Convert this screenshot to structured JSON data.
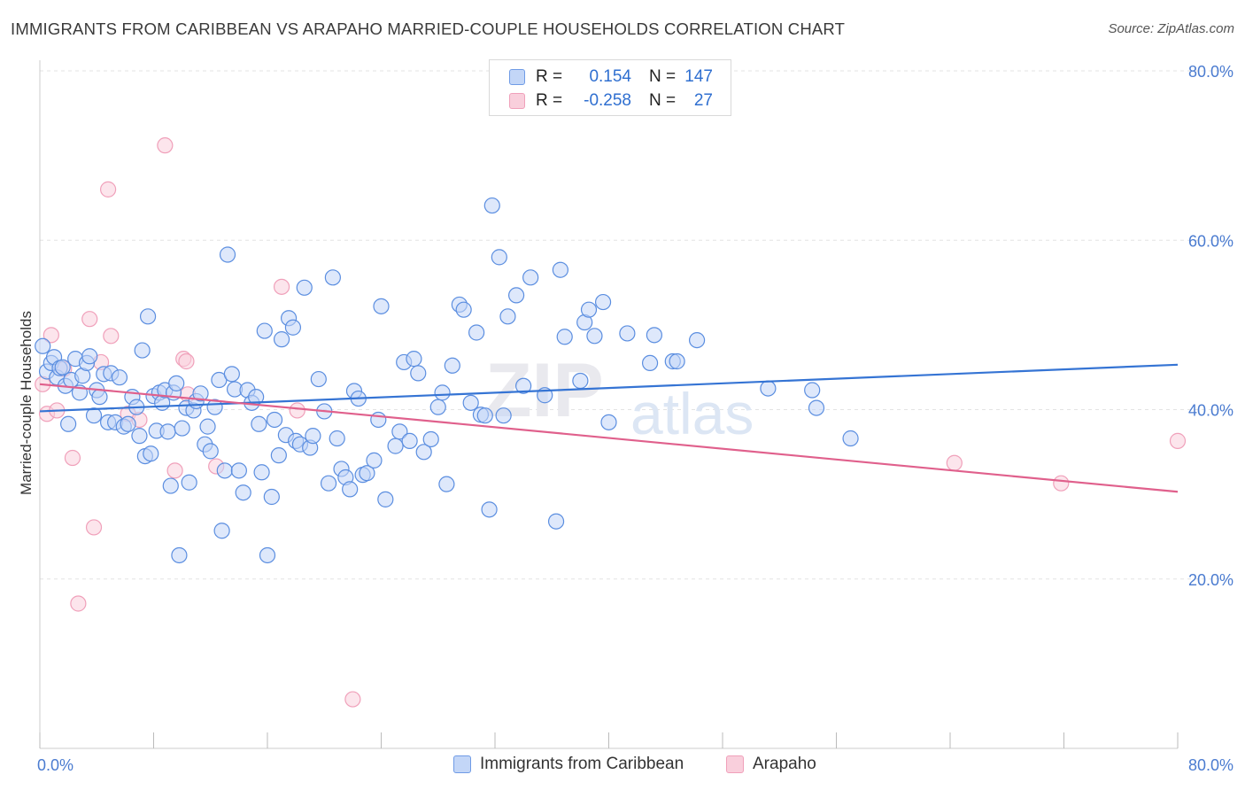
{
  "header": {
    "title": "IMMIGRANTS FROM CARIBBEAN VS ARAPAHO MARRIED-COUPLE HOUSEHOLDS CORRELATION CHART",
    "source": "Source: ZipAtlas.com"
  },
  "watermark": {
    "zip": "ZIP",
    "atlas": "atlas"
  },
  "legend": {
    "rows": [
      {
        "r_label": "R =",
        "r_value": "0.154",
        "n_label": "N =",
        "n_value": "147",
        "color": "#6f9be6",
        "fill": "#c3d6f7"
      },
      {
        "r_label": "R =",
        "r_value": "-0.258",
        "n_label": "N =",
        "n_value": "27",
        "color": "#f0a0ba",
        "fill": "#f9cfdc"
      }
    ]
  },
  "bottom_legend": {
    "items": [
      {
        "label": "Immigrants from Caribbean",
        "color": "#6f9be6",
        "fill": "#c3d6f7"
      },
      {
        "label": "Arapaho",
        "color": "#f0a0ba",
        "fill": "#f9cfdc"
      }
    ]
  },
  "chart_data": {
    "type": "scatter",
    "ylabel": "Married-couple Households",
    "xlim": [
      0,
      80
    ],
    "ylim": [
      0,
      80
    ],
    "x_tick_labels": [
      {
        "value": 0,
        "label": "0.0%"
      },
      {
        "value": 80,
        "label": "80.0%"
      }
    ],
    "y_tick_labels": [
      {
        "value": 20,
        "label": "20.0%"
      },
      {
        "value": 40,
        "label": "40.0%"
      },
      {
        "value": 60,
        "label": "60.0%"
      },
      {
        "value": 80,
        "label": "80.0%"
      }
    ],
    "grid": "horizontal-dashed",
    "series": [
      {
        "name": "Immigrants from Caribbean",
        "color": "#5b8ee0",
        "fill": "#c3d6f7",
        "trend": {
          "x": [
            0,
            80
          ],
          "y": [
            39.8,
            45.3
          ],
          "color": "#3574d4"
        },
        "points": [
          [
            0.2,
            47.5
          ],
          [
            0.5,
            44.5
          ],
          [
            0.8,
            45.5
          ],
          [
            1.0,
            46.2
          ],
          [
            1.2,
            43.8
          ],
          [
            1.4,
            44.9
          ],
          [
            1.6,
            45.0
          ],
          [
            1.8,
            42.8
          ],
          [
            2.0,
            38.3
          ],
          [
            2.2,
            43.5
          ],
          [
            2.5,
            46.0
          ],
          [
            2.8,
            42.0
          ],
          [
            3.0,
            44.0
          ],
          [
            3.3,
            45.5
          ],
          [
            3.5,
            46.3
          ],
          [
            3.8,
            39.3
          ],
          [
            4.0,
            42.3
          ],
          [
            4.2,
            41.5
          ],
          [
            4.5,
            44.2
          ],
          [
            4.8,
            38.5
          ],
          [
            5.0,
            44.3
          ],
          [
            5.3,
            38.5
          ],
          [
            5.6,
            43.8
          ],
          [
            5.9,
            38.0
          ],
          [
            6.2,
            38.3
          ],
          [
            6.5,
            41.5
          ],
          [
            6.8,
            40.3
          ],
          [
            7.0,
            36.9
          ],
          [
            7.2,
            47.0
          ],
          [
            7.4,
            34.5
          ],
          [
            7.6,
            51.0
          ],
          [
            7.8,
            34.8
          ],
          [
            8.0,
            41.6
          ],
          [
            8.2,
            37.5
          ],
          [
            8.4,
            42.0
          ],
          [
            8.6,
            40.8
          ],
          [
            8.8,
            42.3
          ],
          [
            9.0,
            37.4
          ],
          [
            9.2,
            31.0
          ],
          [
            9.4,
            42.0
          ],
          [
            9.6,
            43.1
          ],
          [
            9.8,
            22.8
          ],
          [
            10.0,
            37.8
          ],
          [
            10.3,
            40.2
          ],
          [
            10.5,
            31.4
          ],
          [
            10.8,
            39.9
          ],
          [
            11.0,
            41.0
          ],
          [
            11.3,
            41.9
          ],
          [
            11.6,
            35.9
          ],
          [
            11.8,
            38.0
          ],
          [
            12.0,
            35.1
          ],
          [
            12.3,
            40.3
          ],
          [
            12.6,
            43.5
          ],
          [
            12.8,
            25.7
          ],
          [
            13.0,
            32.8
          ],
          [
            13.2,
            58.3
          ],
          [
            13.5,
            44.2
          ],
          [
            13.7,
            42.4
          ],
          [
            14.0,
            32.8
          ],
          [
            14.3,
            30.2
          ],
          [
            14.6,
            42.3
          ],
          [
            14.9,
            40.8
          ],
          [
            15.2,
            41.5
          ],
          [
            15.4,
            38.3
          ],
          [
            15.6,
            32.6
          ],
          [
            15.8,
            49.3
          ],
          [
            16.0,
            22.8
          ],
          [
            16.3,
            29.7
          ],
          [
            16.5,
            38.8
          ],
          [
            16.8,
            34.6
          ],
          [
            17.0,
            48.3
          ],
          [
            17.3,
            37.0
          ],
          [
            17.5,
            50.8
          ],
          [
            17.8,
            49.7
          ],
          [
            18.0,
            36.3
          ],
          [
            18.3,
            35.9
          ],
          [
            18.6,
            54.4
          ],
          [
            19.0,
            35.5
          ],
          [
            19.2,
            36.9
          ],
          [
            19.6,
            43.6
          ],
          [
            20.0,
            39.8
          ],
          [
            20.3,
            31.3
          ],
          [
            20.6,
            55.6
          ],
          [
            20.9,
            36.6
          ],
          [
            21.2,
            33.0
          ],
          [
            21.5,
            32.0
          ],
          [
            21.8,
            30.6
          ],
          [
            22.1,
            42.2
          ],
          [
            22.4,
            41.3
          ],
          [
            22.7,
            32.3
          ],
          [
            23.0,
            32.5
          ],
          [
            23.5,
            34.0
          ],
          [
            23.8,
            38.8
          ],
          [
            24.0,
            52.2
          ],
          [
            24.3,
            29.4
          ],
          [
            25.0,
            35.7
          ],
          [
            25.3,
            37.4
          ],
          [
            25.6,
            45.6
          ],
          [
            26.0,
            36.3
          ],
          [
            26.3,
            46.0
          ],
          [
            26.6,
            44.3
          ],
          [
            27.0,
            35.0
          ],
          [
            27.5,
            36.5
          ],
          [
            28.0,
            40.3
          ],
          [
            28.3,
            42.0
          ],
          [
            28.6,
            31.2
          ],
          [
            29.0,
            45.2
          ],
          [
            29.5,
            52.4
          ],
          [
            29.8,
            51.8
          ],
          [
            30.3,
            40.8
          ],
          [
            30.7,
            49.1
          ],
          [
            31.0,
            39.4
          ],
          [
            31.3,
            39.3
          ],
          [
            31.6,
            28.2
          ],
          [
            31.8,
            64.1
          ],
          [
            32.3,
            58.0
          ],
          [
            32.6,
            39.3
          ],
          [
            32.9,
            51.0
          ],
          [
            33.5,
            53.5
          ],
          [
            34.0,
            42.8
          ],
          [
            34.5,
            55.6
          ],
          [
            35.5,
            41.7
          ],
          [
            36.3,
            26.8
          ],
          [
            36.6,
            56.5
          ],
          [
            36.9,
            48.6
          ],
          [
            38.0,
            43.4
          ],
          [
            38.3,
            50.3
          ],
          [
            38.6,
            51.8
          ],
          [
            39.0,
            48.7
          ],
          [
            39.6,
            52.7
          ],
          [
            40.0,
            38.5
          ],
          [
            41.3,
            49.0
          ],
          [
            42.9,
            45.5
          ],
          [
            43.2,
            48.8
          ],
          [
            44.5,
            45.7
          ],
          [
            44.8,
            45.7
          ],
          [
            46.2,
            48.2
          ],
          [
            51.2,
            42.5
          ],
          [
            54.3,
            42.3
          ],
          [
            54.6,
            40.2
          ],
          [
            57.0,
            36.6
          ]
        ]
      },
      {
        "name": "Arapaho",
        "color": "#f0a0ba",
        "fill": "#f9cfdc",
        "trend": {
          "x": [
            0,
            80
          ],
          "y": [
            43.0,
            30.3
          ],
          "color": "#e0608c"
        },
        "points": [
          [
            0.2,
            43.0
          ],
          [
            0.5,
            39.5
          ],
          [
            0.8,
            48.8
          ],
          [
            1.2,
            39.9
          ],
          [
            1.7,
            44.8
          ],
          [
            2.3,
            34.3
          ],
          [
            2.7,
            17.1
          ],
          [
            3.5,
            50.7
          ],
          [
            3.8,
            26.1
          ],
          [
            4.3,
            45.6
          ],
          [
            4.8,
            66.0
          ],
          [
            5.0,
            48.7
          ],
          [
            6.2,
            39.5
          ],
          [
            7.0,
            38.8
          ],
          [
            8.8,
            71.2
          ],
          [
            9.5,
            32.8
          ],
          [
            10.1,
            46.0
          ],
          [
            10.3,
            45.7
          ],
          [
            10.4,
            41.8
          ],
          [
            12.4,
            33.3
          ],
          [
            17.0,
            54.5
          ],
          [
            18.1,
            39.9
          ],
          [
            22.0,
            5.8
          ],
          [
            64.3,
            33.7
          ],
          [
            71.8,
            31.3
          ],
          [
            80.0,
            36.3
          ]
        ]
      }
    ]
  }
}
